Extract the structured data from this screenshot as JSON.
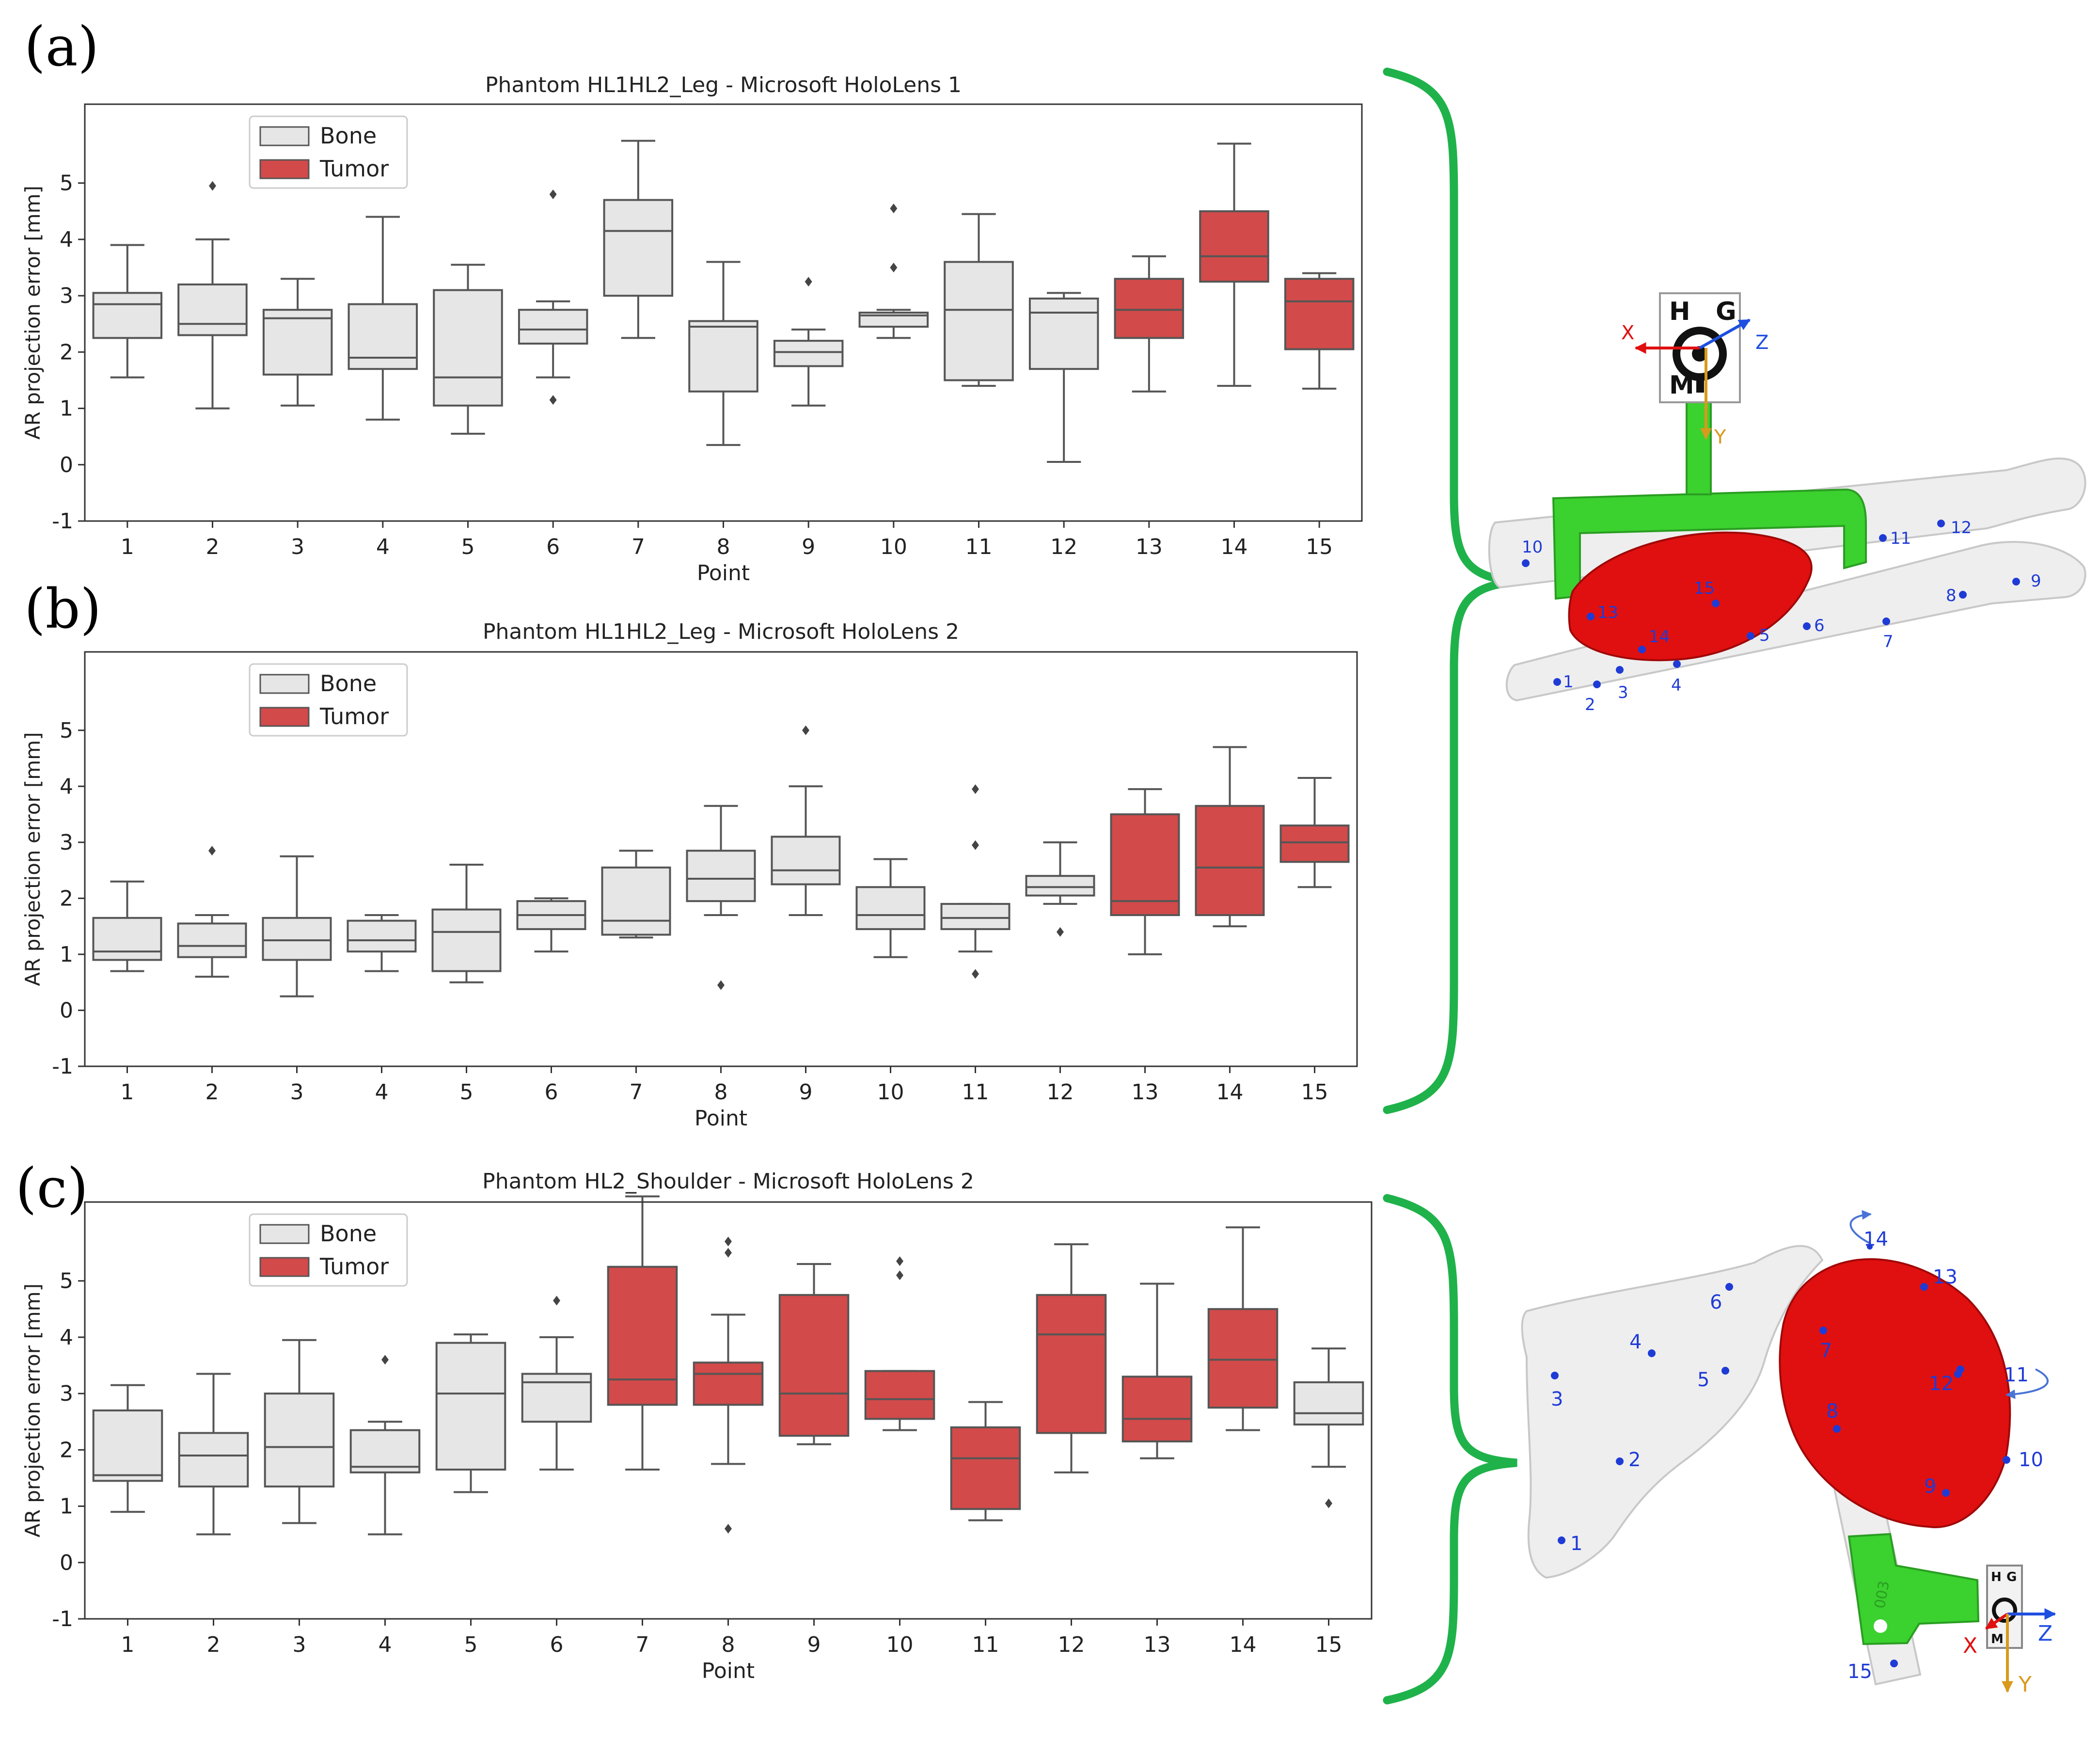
{
  "panels": {
    "a": {
      "label": "(a)"
    },
    "b": {
      "label": "(b)"
    },
    "c": {
      "label": "(c)"
    }
  },
  "colors": {
    "bone": "#e6e6e6",
    "tumor": "#d24a4a",
    "box_edge": "#555555",
    "bracket": "#1fb24a",
    "model_green": "#39d62e",
    "tumor_model": "#e01010",
    "point_marker": "#1f3bd6",
    "axis_x": "#e01010",
    "axis_y": "#d89a1c",
    "axis_z": "#1f4fe0"
  },
  "chart_data": [
    {
      "type": "box",
      "title": "Phantom HL1HL2_Leg - Microsoft HoloLens 1",
      "xlabel": "Point",
      "ylabel": "AR projection error [mm]",
      "ylim": [
        -1,
        6.4
      ],
      "yticks": [
        -1,
        0,
        1,
        2,
        3,
        4,
        5
      ],
      "categories": [
        "1",
        "2",
        "3",
        "4",
        "5",
        "6",
        "7",
        "8",
        "9",
        "10",
        "11",
        "12",
        "13",
        "14",
        "15"
      ],
      "legend": {
        "position": "top-left",
        "entries": [
          {
            "label": "Bone",
            "class": "bone"
          },
          {
            "label": "Tumor",
            "class": "tumor"
          }
        ]
      },
      "boxes": [
        {
          "class": "bone",
          "whislo": 1.55,
          "q1": 2.25,
          "med": 2.85,
          "q3": 3.05,
          "whishi": 3.9,
          "fliers": []
        },
        {
          "class": "bone",
          "whislo": 1.0,
          "q1": 2.3,
          "med": 2.5,
          "q3": 3.2,
          "whishi": 4.0,
          "fliers": [
            4.95
          ]
        },
        {
          "class": "bone",
          "whislo": 1.05,
          "q1": 1.6,
          "med": 2.6,
          "q3": 2.75,
          "whishi": 3.3,
          "fliers": []
        },
        {
          "class": "bone",
          "whislo": 0.8,
          "q1": 1.7,
          "med": 1.9,
          "q3": 2.85,
          "whishi": 4.4,
          "fliers": []
        },
        {
          "class": "bone",
          "whislo": 0.55,
          "q1": 1.05,
          "med": 1.55,
          "q3": 3.1,
          "whishi": 3.55,
          "fliers": []
        },
        {
          "class": "bone",
          "whislo": 1.55,
          "q1": 2.15,
          "med": 2.4,
          "q3": 2.75,
          "whishi": 2.9,
          "fliers": [
            4.8,
            1.15
          ]
        },
        {
          "class": "bone",
          "whislo": 2.25,
          "q1": 3.0,
          "med": 4.15,
          "q3": 4.7,
          "whishi": 5.75,
          "fliers": []
        },
        {
          "class": "bone",
          "whislo": 0.35,
          "q1": 1.3,
          "med": 2.45,
          "q3": 2.55,
          "whishi": 3.6,
          "fliers": []
        },
        {
          "class": "bone",
          "whislo": 1.05,
          "q1": 1.75,
          "med": 2.0,
          "q3": 2.2,
          "whishi": 2.4,
          "fliers": [
            3.25
          ]
        },
        {
          "class": "bone",
          "whislo": 2.25,
          "q1": 2.45,
          "med": 2.65,
          "q3": 2.7,
          "whishi": 2.75,
          "fliers": [
            4.55,
            3.5
          ]
        },
        {
          "class": "bone",
          "whislo": 1.4,
          "q1": 1.5,
          "med": 2.75,
          "q3": 3.6,
          "whishi": 4.45,
          "fliers": []
        },
        {
          "class": "bone",
          "whislo": 0.05,
          "q1": 1.7,
          "med": 2.7,
          "q3": 2.95,
          "whishi": 3.05,
          "fliers": []
        },
        {
          "class": "tumor",
          "whislo": 1.3,
          "q1": 2.25,
          "med": 2.75,
          "q3": 3.3,
          "whishi": 3.7,
          "fliers": []
        },
        {
          "class": "tumor",
          "whislo": 1.4,
          "q1": 3.25,
          "med": 3.7,
          "q3": 4.5,
          "whishi": 5.7,
          "fliers": []
        },
        {
          "class": "tumor",
          "whislo": 1.35,
          "q1": 2.05,
          "med": 2.9,
          "q3": 3.3,
          "whishi": 3.4,
          "fliers": []
        }
      ]
    },
    {
      "type": "box",
      "title": "Phantom HL1HL2_Leg - Microsoft HoloLens 2",
      "xlabel": "Point",
      "ylabel": "AR projection error [mm]",
      "ylim": [
        -1,
        6.4
      ],
      "yticks": [
        -1,
        0,
        1,
        2,
        3,
        4,
        5
      ],
      "categories": [
        "1",
        "2",
        "3",
        "4",
        "5",
        "6",
        "7",
        "8",
        "9",
        "10",
        "11",
        "12",
        "13",
        "14",
        "15"
      ],
      "legend": {
        "position": "top-left",
        "entries": [
          {
            "label": "Bone",
            "class": "bone"
          },
          {
            "label": "Tumor",
            "class": "tumor"
          }
        ]
      },
      "boxes": [
        {
          "class": "bone",
          "whislo": 0.7,
          "q1": 0.9,
          "med": 1.05,
          "q3": 1.65,
          "whishi": 2.3,
          "fliers": []
        },
        {
          "class": "bone",
          "whislo": 0.6,
          "q1": 0.95,
          "med": 1.15,
          "q3": 1.55,
          "whishi": 1.7,
          "fliers": [
            2.85
          ]
        },
        {
          "class": "bone",
          "whislo": 0.25,
          "q1": 0.9,
          "med": 1.25,
          "q3": 1.65,
          "whishi": 2.75,
          "fliers": []
        },
        {
          "class": "bone",
          "whislo": 0.7,
          "q1": 1.05,
          "med": 1.25,
          "q3": 1.6,
          "whishi": 1.7,
          "fliers": []
        },
        {
          "class": "bone",
          "whislo": 0.5,
          "q1": 0.7,
          "med": 1.4,
          "q3": 1.8,
          "whishi": 2.6,
          "fliers": []
        },
        {
          "class": "bone",
          "whislo": 1.05,
          "q1": 1.45,
          "med": 1.7,
          "q3": 1.95,
          "whishi": 2.0,
          "fliers": []
        },
        {
          "class": "bone",
          "whislo": 1.3,
          "q1": 1.35,
          "med": 1.6,
          "q3": 2.55,
          "whishi": 2.85,
          "fliers": []
        },
        {
          "class": "bone",
          "whislo": 1.7,
          "q1": 1.95,
          "med": 2.35,
          "q3": 2.85,
          "whishi": 3.65,
          "fliers": [
            0.45
          ]
        },
        {
          "class": "bone",
          "whislo": 1.7,
          "q1": 2.25,
          "med": 2.5,
          "q3": 3.1,
          "whishi": 4.0,
          "fliers": [
            5.0
          ]
        },
        {
          "class": "bone",
          "whislo": 0.95,
          "q1": 1.45,
          "med": 1.7,
          "q3": 2.2,
          "whishi": 2.7,
          "fliers": []
        },
        {
          "class": "bone",
          "whislo": 1.05,
          "q1": 1.45,
          "med": 1.65,
          "q3": 1.9,
          "whishi": 1.9,
          "fliers": [
            3.95,
            2.95,
            0.65
          ]
        },
        {
          "class": "bone",
          "whislo": 1.9,
          "q1": 2.05,
          "med": 2.2,
          "q3": 2.4,
          "whishi": 3.0,
          "fliers": [
            1.4
          ]
        },
        {
          "class": "tumor",
          "whislo": 1.0,
          "q1": 1.7,
          "med": 1.95,
          "q3": 3.5,
          "whishi": 3.95,
          "fliers": []
        },
        {
          "class": "tumor",
          "whislo": 1.5,
          "q1": 1.7,
          "med": 2.55,
          "q3": 3.65,
          "whishi": 4.7,
          "fliers": []
        },
        {
          "class": "tumor",
          "whislo": 2.2,
          "q1": 2.65,
          "med": 3.0,
          "q3": 3.3,
          "whishi": 4.15,
          "fliers": []
        }
      ]
    },
    {
      "type": "box",
      "title": "Phantom HL2_Shoulder - Microsoft HoloLens 2",
      "xlabel": "Point",
      "ylabel": "AR projection error [mm]",
      "ylim": [
        -1,
        6.4
      ],
      "yticks": [
        -1,
        0,
        1,
        2,
        3,
        4,
        5
      ],
      "categories": [
        "1",
        "2",
        "3",
        "4",
        "5",
        "6",
        "7",
        "8",
        "9",
        "10",
        "11",
        "12",
        "13",
        "14",
        "15"
      ],
      "legend": {
        "position": "top-left",
        "entries": [
          {
            "label": "Bone",
            "class": "bone"
          },
          {
            "label": "Tumor",
            "class": "tumor"
          }
        ]
      },
      "boxes": [
        {
          "class": "bone",
          "whislo": 0.9,
          "q1": 1.45,
          "med": 1.55,
          "q3": 2.7,
          "whishi": 3.15,
          "fliers": []
        },
        {
          "class": "bone",
          "whislo": 0.5,
          "q1": 1.35,
          "med": 1.9,
          "q3": 2.3,
          "whishi": 3.35,
          "fliers": []
        },
        {
          "class": "bone",
          "whislo": 0.7,
          "q1": 1.35,
          "med": 2.05,
          "q3": 3.0,
          "whishi": 3.95,
          "fliers": []
        },
        {
          "class": "bone",
          "whislo": 0.5,
          "q1": 1.6,
          "med": 1.7,
          "q3": 2.35,
          "whishi": 2.5,
          "fliers": [
            3.6
          ]
        },
        {
          "class": "bone",
          "whislo": 1.25,
          "q1": 1.65,
          "med": 3.0,
          "q3": 3.9,
          "whishi": 4.05,
          "fliers": []
        },
        {
          "class": "bone",
          "whislo": 1.65,
          "q1": 2.5,
          "med": 3.2,
          "q3": 3.35,
          "whishi": 4.0,
          "fliers": [
            4.65
          ]
        },
        {
          "class": "tumor",
          "whislo": 1.65,
          "q1": 2.8,
          "med": 3.25,
          "q3": 5.25,
          "whishi": 6.5,
          "fliers": []
        },
        {
          "class": "tumor",
          "whislo": 1.75,
          "q1": 2.8,
          "med": 3.35,
          "q3": 3.55,
          "whishi": 4.4,
          "fliers": [
            5.7,
            5.5,
            0.6
          ]
        },
        {
          "class": "tumor",
          "whislo": 2.1,
          "q1": 2.25,
          "med": 3.0,
          "q3": 4.75,
          "whishi": 5.3,
          "fliers": []
        },
        {
          "class": "tumor",
          "whislo": 2.35,
          "q1": 2.55,
          "med": 2.9,
          "q3": 3.4,
          "whishi": 3.4,
          "fliers": [
            5.35,
            5.1
          ]
        },
        {
          "class": "tumor",
          "whislo": 0.75,
          "q1": 0.95,
          "med": 1.85,
          "q3": 2.4,
          "whishi": 2.85,
          "fliers": []
        },
        {
          "class": "tumor",
          "whislo": 1.6,
          "q1": 2.3,
          "med": 4.05,
          "q3": 4.75,
          "whishi": 5.65,
          "fliers": []
        },
        {
          "class": "tumor",
          "whislo": 1.85,
          "q1": 2.15,
          "med": 2.55,
          "q3": 3.3,
          "whishi": 4.95,
          "fliers": []
        },
        {
          "class": "tumor",
          "whislo": 2.35,
          "q1": 2.75,
          "med": 3.6,
          "q3": 4.5,
          "whishi": 5.95,
          "fliers": []
        },
        {
          "class": "bone",
          "whislo": 1.7,
          "q1": 2.45,
          "med": 2.65,
          "q3": 3.2,
          "whishi": 3.8,
          "fliers": [
            1.05
          ]
        }
      ]
    }
  ],
  "leg_model": {
    "marker_letters": [
      "H",
      "G",
      "M"
    ],
    "axes": {
      "x": "X",
      "y": "Y",
      "z": "Z"
    },
    "points": [
      "1",
      "2",
      "3",
      "4",
      "5",
      "6",
      "7",
      "8",
      "9",
      "10",
      "11",
      "12",
      "13",
      "14",
      "15"
    ]
  },
  "shoulder_model": {
    "marker_letters": [
      "H",
      "G",
      "M"
    ],
    "axes": {
      "x": "X",
      "y": "Y",
      "z": "Z"
    },
    "points": [
      "1",
      "2",
      "3",
      "4",
      "5",
      "6",
      "7",
      "8",
      "9",
      "10",
      "11",
      "12",
      "13",
      "14",
      "15"
    ],
    "engraving": "003"
  }
}
